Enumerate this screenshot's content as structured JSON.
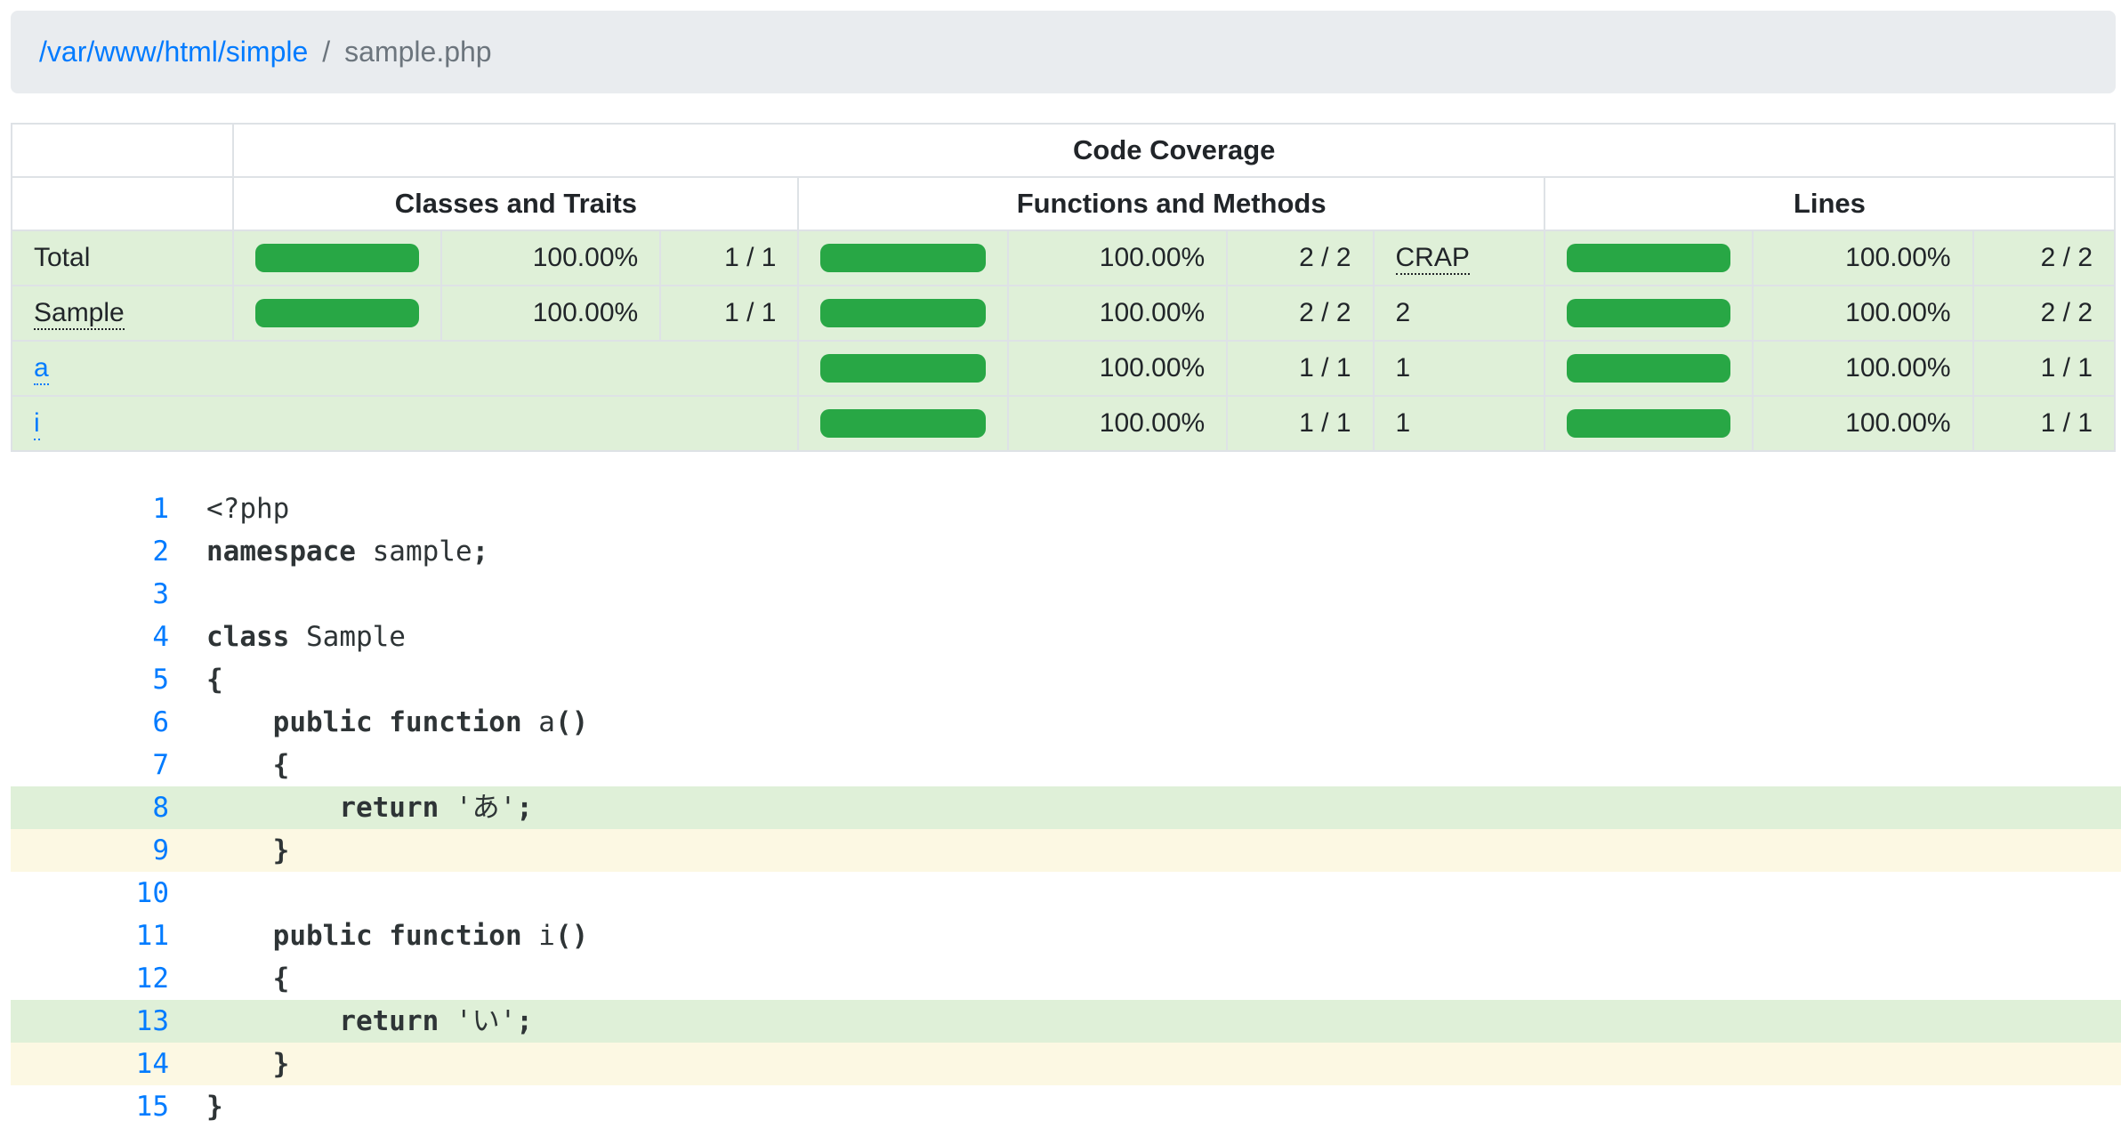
{
  "breadcrumb": {
    "directory": "/var/www/html/simple",
    "separator": "/",
    "file": "sample.php"
  },
  "coverage_table": {
    "title": "Code Coverage",
    "sections": [
      "Classes and Traits",
      "Functions and Methods",
      "Lines"
    ],
    "rows": [
      {
        "id": "total",
        "name": "Total",
        "name_style": "plain",
        "classes": {
          "pct": "100.00%",
          "frac": "1 / 1"
        },
        "methods": {
          "pct": "100.00%",
          "frac": "2 / 2"
        },
        "crap": "CRAP",
        "crap_style": "abbr",
        "lines": {
          "pct": "100.00%",
          "frac": "2 / 2"
        }
      },
      {
        "id": "sample",
        "name": "Sample",
        "name_style": "abbr",
        "classes": {
          "pct": "100.00%",
          "frac": "1 / 1"
        },
        "methods": {
          "pct": "100.00%",
          "frac": "2 / 2"
        },
        "crap": "2",
        "crap_style": "plain",
        "lines": {
          "pct": "100.00%",
          "frac": "2 / 2"
        }
      },
      {
        "id": "a",
        "name": "a",
        "name_style": "link",
        "classes": null,
        "methods": {
          "pct": "100.00%",
          "frac": "1 / 1"
        },
        "crap": "1",
        "crap_style": "plain",
        "lines": {
          "pct": "100.00%",
          "frac": "1 / 1"
        }
      },
      {
        "id": "i",
        "name": "i",
        "name_style": "link",
        "classes": null,
        "methods": {
          "pct": "100.00%",
          "frac": "1 / 1"
        },
        "crap": "1",
        "crap_style": "plain",
        "lines": {
          "pct": "100.00%",
          "frac": "1 / 1"
        }
      }
    ]
  },
  "source": {
    "lines": [
      {
        "n": "1",
        "s": "plain",
        "seg": [
          [
            "<?php",
            0
          ]
        ]
      },
      {
        "n": "2",
        "s": "plain",
        "seg": [
          [
            "namespace",
            1
          ],
          [
            " sample",
            0
          ],
          [
            ";",
            1
          ]
        ]
      },
      {
        "n": "3",
        "s": "plain",
        "seg": []
      },
      {
        "n": "4",
        "s": "plain",
        "seg": [
          [
            "class",
            1
          ],
          [
            " Sample",
            0
          ]
        ]
      },
      {
        "n": "5",
        "s": "plain",
        "seg": [
          [
            "{",
            1
          ]
        ]
      },
      {
        "n": "6",
        "s": "plain",
        "seg": [
          [
            "    ",
            0
          ],
          [
            "public function",
            1
          ],
          [
            " a",
            0
          ],
          [
            "()",
            1
          ]
        ]
      },
      {
        "n": "7",
        "s": "plain",
        "seg": [
          [
            "    ",
            0
          ],
          [
            "{",
            1
          ]
        ]
      },
      {
        "n": "8",
        "s": "covered",
        "seg": [
          [
            "        ",
            0
          ],
          [
            "return",
            1
          ],
          [
            " 'あ'",
            0
          ],
          [
            ";",
            1
          ]
        ]
      },
      {
        "n": "9",
        "s": "dead",
        "seg": [
          [
            "    ",
            0
          ],
          [
            "}",
            1
          ]
        ]
      },
      {
        "n": "10",
        "s": "plain",
        "seg": []
      },
      {
        "n": "11",
        "s": "plain",
        "seg": [
          [
            "    ",
            0
          ],
          [
            "public function",
            1
          ],
          [
            " i",
            0
          ],
          [
            "()",
            1
          ]
        ]
      },
      {
        "n": "12",
        "s": "plain",
        "seg": [
          [
            "    ",
            0
          ],
          [
            "{",
            1
          ]
        ]
      },
      {
        "n": "13",
        "s": "covered",
        "seg": [
          [
            "        ",
            0
          ],
          [
            "return",
            1
          ],
          [
            " 'い'",
            0
          ],
          [
            ";",
            1
          ]
        ]
      },
      {
        "n": "14",
        "s": "dead",
        "seg": [
          [
            "    ",
            0
          ],
          [
            "}",
            1
          ]
        ]
      },
      {
        "n": "15",
        "s": "plain",
        "seg": [
          [
            "}",
            1
          ]
        ]
      }
    ]
  },
  "colors": {
    "success_bar": "#28a745",
    "success_bg": "#dff0d8",
    "dead_code_bg": "#fcf8e3",
    "link": "#007bff",
    "breadcrumb_bg": "#e9ecef",
    "muted_text": "#6c757d",
    "table_border": "#dee2e6",
    "code_text": "#2e3436"
  }
}
